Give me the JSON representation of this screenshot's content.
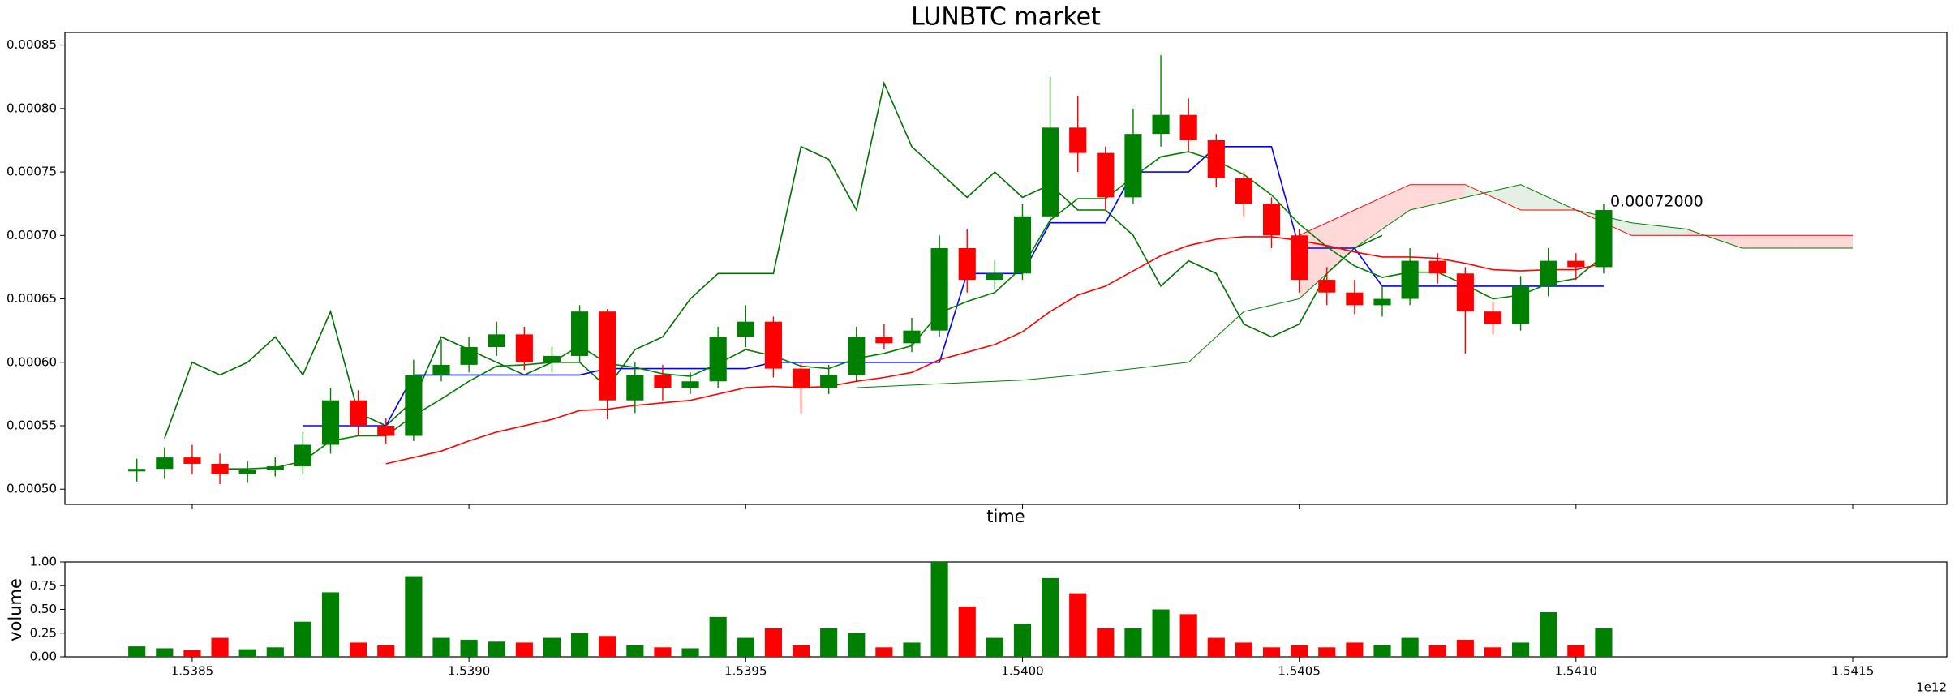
{
  "chart_data": [
    {
      "type": "candlestick",
      "title": "LUNBTC market",
      "xlabel": "time",
      "x": [
        1.5384,
        1.53845,
        1.5385,
        1.53855,
        1.5386,
        1.53865,
        1.5387,
        1.53875,
        1.5388,
        1.53885,
        1.5389,
        1.53895,
        1.539,
        1.53905,
        1.5391,
        1.53915,
        1.5392,
        1.53925,
        1.5393,
        1.53935,
        1.5394,
        1.53945,
        1.5395,
        1.53955,
        1.5396,
        1.53965,
        1.5397,
        1.53975,
        1.5398,
        1.53985,
        1.5399,
        1.53995,
        1.54,
        1.54005,
        1.5401,
        1.54015,
        1.5402,
        1.54025,
        1.5403,
        1.54035,
        1.5404,
        1.54045,
        1.5405,
        1.54055,
        1.5406,
        1.54065,
        1.5407,
        1.54075,
        1.5408,
        1.54085,
        1.5409,
        1.54095,
        1.541,
        1.54105
      ],
      "open": [
        0.000514,
        0.000516,
        0.000525,
        0.00052,
        0.000512,
        0.000515,
        0.000518,
        0.000535,
        0.00057,
        0.00055,
        0.000542,
        0.00059,
        0.000598,
        0.000612,
        0.000622,
        0.0006,
        0.000605,
        0.00064,
        0.00057,
        0.00059,
        0.00058,
        0.000585,
        0.00062,
        0.000632,
        0.000595,
        0.00058,
        0.00059,
        0.00062,
        0.000615,
        0.000625,
        0.00069,
        0.000665,
        0.00067,
        0.000715,
        0.000785,
        0.000765,
        0.00073,
        0.00078,
        0.000795,
        0.000775,
        0.000745,
        0.000725,
        0.0007,
        0.000665,
        0.000655,
        0.000645,
        0.00065,
        0.00068,
        0.00067,
        0.00064,
        0.00063,
        0.00066,
        0.00068,
        0.000675
      ],
      "high": [
        0.000524,
        0.000533,
        0.000535,
        0.000528,
        0.000522,
        0.000525,
        0.000545,
        0.00058,
        0.000578,
        0.000556,
        0.000602,
        0.000618,
        0.00062,
        0.000632,
        0.000628,
        0.000612,
        0.000645,
        0.000642,
        0.0006,
        0.000598,
        0.000592,
        0.000628,
        0.000645,
        0.000636,
        0.0006,
        0.000598,
        0.000628,
        0.00063,
        0.000635,
        0.0007,
        0.000705,
        0.00068,
        0.000725,
        0.000825,
        0.00081,
        0.00077,
        0.0008,
        0.000842,
        0.000808,
        0.00078,
        0.00075,
        0.00073,
        0.000705,
        0.000675,
        0.000665,
        0.00066,
        0.00069,
        0.000686,
        0.000675,
        0.000648,
        0.000668,
        0.00069,
        0.000686,
        0.000725
      ],
      "low": [
        0.000506,
        0.000508,
        0.000512,
        0.000504,
        0.000505,
        0.00051,
        0.000512,
        0.000528,
        0.000542,
        0.000536,
        0.000538,
        0.000585,
        0.000592,
        0.000605,
        0.000594,
        0.000592,
        0.0006,
        0.000555,
        0.00056,
        0.00057,
        0.000575,
        0.00058,
        0.000612,
        0.000588,
        0.00056,
        0.000575,
        0.000585,
        0.00061,
        0.000608,
        0.00062,
        0.000655,
        0.000658,
        0.000665,
        0.00071,
        0.00075,
        0.00072,
        0.000725,
        0.00077,
        0.000765,
        0.000738,
        0.000715,
        0.00069,
        0.000655,
        0.000645,
        0.000638,
        0.000636,
        0.000645,
        0.000662,
        0.000607,
        0.000622,
        0.000625,
        0.000652,
        0.000665,
        0.00067
      ],
      "close": [
        0.000516,
        0.000525,
        0.00052,
        0.000512,
        0.000515,
        0.000518,
        0.000535,
        0.00057,
        0.00055,
        0.000542,
        0.00059,
        0.000598,
        0.000612,
        0.000622,
        0.0006,
        0.000605,
        0.00064,
        0.00057,
        0.00059,
        0.00058,
        0.000585,
        0.00062,
        0.000632,
        0.000595,
        0.00058,
        0.00059,
        0.00062,
        0.000615,
        0.000625,
        0.00069,
        0.000665,
        0.00067,
        0.000715,
        0.000785,
        0.000765,
        0.00073,
        0.00078,
        0.000795,
        0.000775,
        0.000745,
        0.000725,
        0.0007,
        0.000665,
        0.000655,
        0.000645,
        0.00065,
        0.00068,
        0.00067,
        0.00064,
        0.00063,
        0.00066,
        0.00068,
        0.000675,
        0.00072
      ],
      "up_color": "#008000",
      "down_color": "#ff0000",
      "lines": [
        {
          "color": "#007000",
          "values": [
            null,
            0.00054,
            0.0006,
            0.00059,
            0.0006,
            0.00062,
            0.00059,
            0.00064,
            0.00056,
            0.00055,
            0.00057,
            0.00062,
            0.00061,
            0.0006,
            0.00059,
            0.0006,
            0.0006,
            0.00058,
            0.00061,
            0.00062,
            0.00065,
            0.00067,
            0.00067,
            0.00067,
            0.00077,
            0.00076,
            0.00072,
            0.00082,
            0.00077,
            0.00075,
            0.00073,
            0.00075,
            0.00073,
            0.00074,
            0.00072,
            0.00072,
            0.0007,
            0.00066,
            0.00068,
            0.00067,
            0.00063,
            0.00062,
            0.00063,
            0.00067,
            0.00069,
            0.0007,
            null,
            null,
            null,
            null,
            null,
            null,
            null,
            null
          ]
        },
        {
          "color": "#0000ff",
          "values": [
            null,
            null,
            null,
            null,
            null,
            null,
            0.00055,
            0.00055,
            0.00055,
            0.00055,
            0.00059,
            0.00059,
            0.00059,
            0.00059,
            0.00059,
            0.00059,
            0.00059,
            0.000595,
            0.000595,
            0.000595,
            0.000595,
            0.000595,
            0.000595,
            0.0006,
            0.0006,
            0.0006,
            0.0006,
            0.0006,
            0.0006,
            0.0006,
            0.00067,
            0.00067,
            0.00067,
            0.00071,
            0.00071,
            0.00071,
            0.00075,
            0.00075,
            0.00075,
            0.00077,
            0.00077,
            0.00077,
            0.00069,
            0.00069,
            0.00069,
            0.00066,
            0.00066,
            0.00066,
            0.00066,
            0.00066,
            0.00066,
            0.00066,
            0.00066,
            0.00066
          ]
        },
        {
          "color": "#008000",
          "values": [
            null,
            null,
            null,
            0.000516,
            0.000516,
            0.000517,
            0.000522,
            0.000538,
            0.000542,
            0.000542,
            0.000558,
            0.000571,
            0.000585,
            0.000597,
            0.000598,
            0.0006,
            0.000613,
            0.000599,
            0.000596,
            0.000591,
            0.000589,
            0.000599,
            0.00061,
            0.000605,
            0.000597,
            0.000595,
            0.000603,
            0.000607,
            0.000613,
            0.000639,
            0.000648,
            0.000655,
            0.000675,
            0.000712,
            0.000729,
            0.000729,
            0.000746,
            0.000762,
            0.000766,
            0.000759,
            0.000748,
            0.000732,
            0.000709,
            0.000691,
            0.000676,
            0.000667,
            0.000671,
            0.000671,
            0.000661,
            0.00065,
            0.000653,
            0.000662,
            0.000666,
            0.000684
          ]
        },
        {
          "color": "#ff0000",
          "values": [
            null,
            null,
            null,
            null,
            null,
            null,
            null,
            null,
            null,
            0.00052,
            0.000525,
            0.00053,
            0.000538,
            0.000545,
            0.00055,
            0.000555,
            0.000562,
            0.000563,
            0.000566,
            0.000568,
            0.00057,
            0.000575,
            0.00058,
            0.000581,
            0.00058,
            0.000581,
            0.000585,
            0.000588,
            0.000592,
            0.000602,
            0.000608,
            0.000614,
            0.000624,
            0.00064,
            0.000653,
            0.00066,
            0.000672,
            0.000684,
            0.000692,
            0.000697,
            0.000699,
            0.000699,
            0.000696,
            0.000692,
            0.000687,
            0.000683,
            0.000683,
            0.000682,
            0.000678,
            0.000673,
            0.000672,
            0.000673,
            0.000673,
            0.000678
          ]
        }
      ],
      "cloud": {
        "x": [
          1.5397,
          1.5398,
          1.5399,
          1.54,
          1.5401,
          1.5402,
          1.5403,
          1.5404,
          1.5405,
          1.5406,
          1.5407,
          1.5408,
          1.5409,
          1.541,
          1.5411,
          1.5412,
          1.5413,
          1.5414,
          1.5415
        ],
        "span_a": [
          0.00058,
          0.000582,
          0.000584,
          0.000586,
          0.00059,
          0.000595,
          0.0006,
          0.00064,
          0.00065,
          0.00069,
          0.00072,
          0.00073,
          0.00074,
          0.00072,
          0.00071,
          0.000705,
          0.00069,
          0.00069,
          0.00069
        ],
        "span_b": [
          null,
          null,
          null,
          null,
          null,
          null,
          null,
          null,
          0.0007,
          0.00072,
          0.00074,
          0.00074,
          0.00072,
          0.00072,
          0.0007,
          0.0007,
          0.0007,
          0.0007,
          0.0007
        ],
        "span_a_color": "#008000",
        "span_b_color": "#ff0000",
        "up_fill": "#e3f0e3",
        "down_fill": "#ffd8d8"
      },
      "annotation": "0.00072000",
      "xlim": [
        1.53827,
        1.54167
      ],
      "xticks": [
        1.5385,
        {
          "value": 1.539,
          "label": "1.5390"
        },
        1.5395,
        {
          "value": 1.54,
          "label": "1.5400"
        },
        1.5405,
        {
          "value": 1.541,
          "label": "1.5410"
        },
        1.5415
      ],
      "ylim": [
        0.000488,
        0.00086
      ],
      "yticks": [
        {
          "value": 0.0005,
          "label": "0.00050"
        },
        {
          "value": 0.00055,
          "label": "0.00055"
        },
        {
          "value": 0.0006,
          "label": "0.00060"
        },
        {
          "value": 0.00065,
          "label": "0.00065"
        },
        {
          "value": 0.0007,
          "label": "0.00070"
        },
        {
          "value": 0.00075,
          "label": "0.00075"
        },
        {
          "value": 0.0008,
          "label": "0.00080"
        },
        {
          "value": 0.00085,
          "label": "0.00085"
        }
      ]
    },
    {
      "type": "bar",
      "ylabel": "volume",
      "x_offset_label": "1e12",
      "values": [
        0.11,
        0.09,
        0.07,
        0.2,
        0.08,
        0.1,
        0.37,
        0.68,
        0.15,
        0.12,
        0.85,
        0.2,
        0.18,
        0.16,
        0.15,
        0.2,
        0.25,
        0.22,
        0.12,
        0.1,
        0.09,
        0.42,
        0.2,
        0.3,
        0.12,
        0.3,
        0.25,
        0.1,
        0.15,
        1.0,
        0.53,
        0.2,
        0.35,
        0.83,
        0.67,
        0.3,
        0.3,
        0.5,
        0.45,
        0.2,
        0.15,
        0.1,
        0.12,
        0.1,
        0.15,
        0.12,
        0.2,
        0.12,
        0.18,
        0.1,
        0.15,
        0.47,
        0.12,
        0.3
      ],
      "xlim": [
        1.53827,
        1.54167
      ],
      "xticks": [
        1.5385,
        {
          "value": 1.539,
          "label": "1.5390"
        },
        1.5395,
        {
          "value": 1.54,
          "label": "1.5400"
        },
        1.5405,
        {
          "value": 1.541,
          "label": "1.5410"
        },
        1.5415
      ],
      "ylim": [
        0,
        1
      ],
      "yticks": [
        {
          "value": 0,
          "label": "0.00"
        },
        {
          "value": 0.25,
          "label": "0.25"
        },
        {
          "value": 0.5,
          "label": "0.50"
        },
        {
          "value": 0.75,
          "label": "0.75"
        },
        {
          "value": 1,
          "label": "1.00"
        }
      ]
    }
  ]
}
